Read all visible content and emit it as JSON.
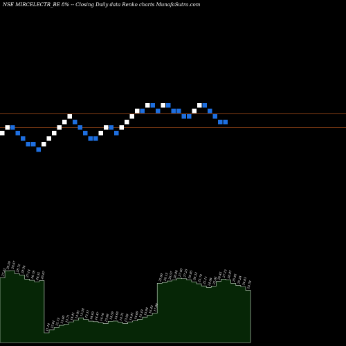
{
  "title": "NSE MIRCELECTR_BE 8% -- Closing Daily data Renko charts MunafaSutra.com",
  "colors": {
    "background": "#000000",
    "up_brick": "#ffffff",
    "down_brick": "#1e6fe0",
    "reference_line": "#b8561e",
    "volume_fill": "#062606",
    "volume_stroke": "#cfe3cf"
  },
  "chart_data": [
    {
      "type": "renko",
      "title": "NSE MIRCELECTR_BE 8% -- Closing Daily data Renko charts MunafaSutra.com",
      "brick_levels": [
        4,
        5,
        5,
        4,
        3,
        2,
        2,
        1,
        2,
        3,
        4,
        5,
        6,
        7,
        6,
        5,
        4,
        3,
        3,
        4,
        5,
        5,
        4,
        5,
        6,
        7,
        8,
        8,
        9,
        9,
        8,
        9,
        9,
        8,
        8,
        7,
        7,
        8,
        9,
        9,
        8,
        7,
        6,
        6
      ],
      "brick_directions": [
        "up",
        "up",
        "down",
        "down",
        "down",
        "down",
        "down",
        "down",
        "up",
        "up",
        "up",
        "up",
        "up",
        "up",
        "down",
        "down",
        "down",
        "down",
        "down",
        "up",
        "up",
        "down",
        "down",
        "up",
        "up",
        "up",
        "up",
        "down",
        "up",
        "down",
        "down",
        "up",
        "down",
        "down",
        "down",
        "down",
        "down",
        "up",
        "up",
        "down",
        "down",
        "down",
        "down",
        "down"
      ],
      "reference_levels": [
        7.5,
        5.0
      ]
    },
    {
      "type": "area",
      "values": [
        27.52,
        29.59,
        29.67,
        28.72,
        28.34,
        27.14,
        26.78,
        26.35,
        26.67,
        11.14,
        12.01,
        12.73,
        13.4,
        13.71,
        14.41,
        14.93,
        15.58,
        15.11,
        14.63,
        14.47,
        14.16,
        13.9,
        14.59,
        14.65,
        14.31,
        13.9,
        14.41,
        14.69,
        15.19,
        15.84,
        16.43,
        17.0,
        25.9,
        26.13,
        26.57,
        26.88,
        27.4,
        27.25,
        26.85,
        26.32,
        25.74,
        25.11,
        24.66,
        25.05,
        26.45,
        27.13,
        26.87,
        25.85,
        25.24,
        24.83,
        23.78
      ],
      "labels": [
        "27.52",
        "29.59",
        "29.67",
        "28.72",
        "28.34",
        "27.14",
        "26.78",
        "26.35",
        "26.67",
        "11.14",
        "12.01",
        "12.73",
        "13.40",
        "13.71",
        "14.41",
        "14.93",
        "15.58",
        "15.11",
        "14.63",
        "14.47",
        "14.16",
        "13.90",
        "14.59",
        "14.65",
        "14.31",
        "13.90",
        "14.41",
        "14.69",
        "15.19",
        "15.84",
        "16.43",
        "17.00",
        "25.90",
        "26.13",
        "26.57",
        "26.88",
        "27.40",
        "27.25",
        "26.85",
        "26.32",
        "25.74",
        "25.11",
        "24.66",
        "25.05",
        "26.45",
        "27.13",
        "26.87",
        "25.85",
        "25.24",
        "24.83",
        "23.78"
      ]
    }
  ]
}
